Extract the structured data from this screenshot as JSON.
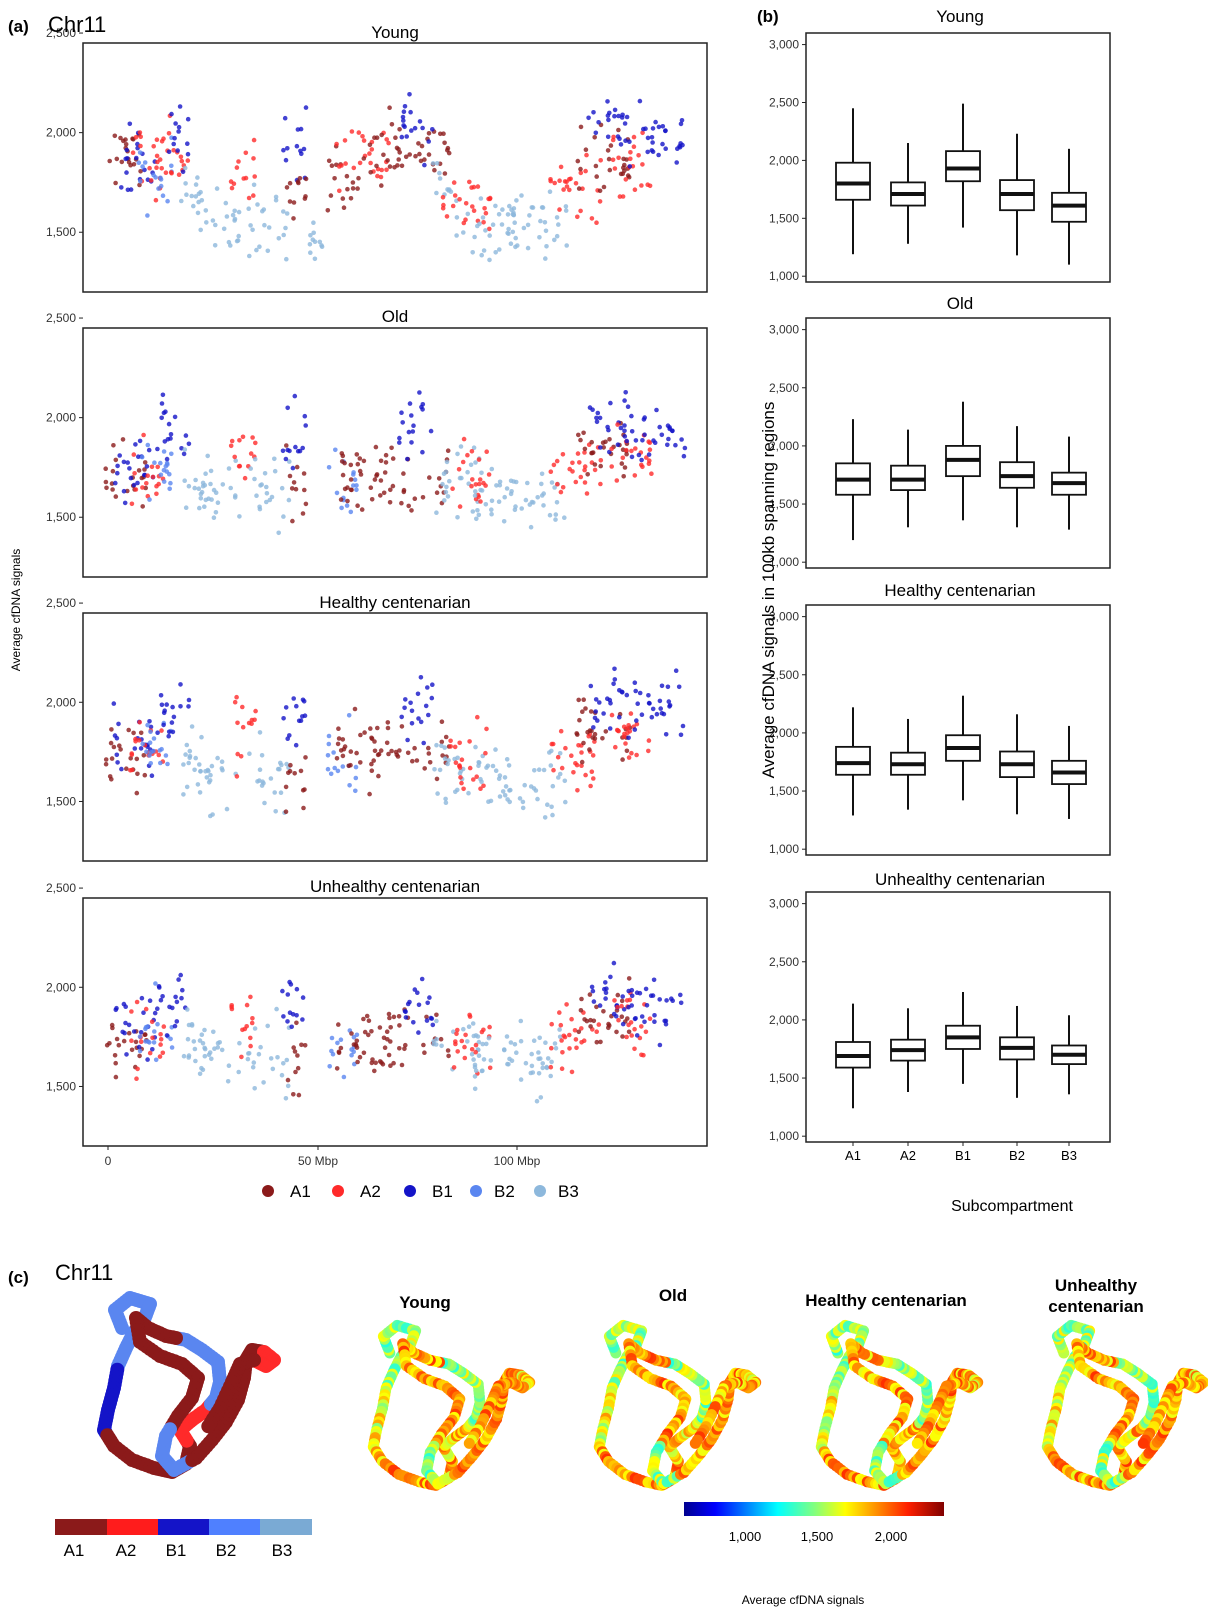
{
  "panel_labels": {
    "a": "(a)",
    "b": "(b)",
    "c": "(c)"
  },
  "chromosome": "Chr11",
  "groups": [
    "Young",
    "Old",
    "Healthy centenarian",
    "Unhealthy centenarian"
  ],
  "colors": {
    "A1": "#8b1a1a",
    "A2": "#ff2a2a",
    "B1": "#1414c8",
    "B2": "#5a86f0",
    "B3": "#8db8dc"
  },
  "legend": {
    "labels": [
      "A1",
      "A2",
      "B1",
      "B2",
      "B3"
    ]
  },
  "panel_a": {
    "ylabel": "Average cfDNA signals",
    "x_ticks": [
      "0",
      "50 Mbp",
      "100 Mbp"
    ],
    "y_ticks": [
      "1,500",
      "2,000",
      "2,500"
    ]
  },
  "panel_b": {
    "ylabel": "Average cfDNA signals in 100kb spanning regions",
    "xlabel": "Subcompartment",
    "y_ticks": [
      "1,000",
      "1,500",
      "2,000",
      "2,500",
      "3,000"
    ]
  },
  "panel_c": {
    "titles": [
      "Young",
      "Old",
      "Healthy centenarian",
      "Unhealthy",
      "centenarian"
    ],
    "compartment_bar_labels": [
      "A1",
      "A2",
      "B1",
      "B2",
      "B3"
    ],
    "colorbar_ticks": [
      "1,000",
      "1,500",
      "2,000"
    ],
    "colorbar_label": "Average cfDNA signals"
  },
  "chart_data": [
    {
      "type": "scatter",
      "title": "Young",
      "xlabel": "",
      "ylabel": "Average cfDNA signals",
      "xlim": [
        0,
        138
      ],
      "ylim": [
        1200,
        2450
      ],
      "segments": [
        {
          "x0": 0,
          "x1": 10,
          "comp": "A1",
          "base": 1880
        },
        {
          "x0": 3,
          "x1": 12,
          "comp": "B1",
          "base": 1850
        },
        {
          "x0": 6,
          "x1": 14,
          "comp": "A2",
          "base": 1850
        },
        {
          "x0": 8,
          "x1": 16,
          "comp": "B2",
          "base": 1780
        },
        {
          "x0": 12,
          "x1": 20,
          "comp": "A2",
          "base": 1900
        },
        {
          "x0": 15,
          "x1": 21,
          "comp": "B1",
          "base": 1980
        },
        {
          "x0": 18,
          "x1": 24,
          "comp": "B3",
          "base": 1700
        },
        {
          "x0": 22,
          "x1": 32,
          "comp": "B3",
          "base": 1520
        },
        {
          "x0": 30,
          "x1": 36,
          "comp": "A2",
          "base": 1820
        },
        {
          "x0": 34,
          "x1": 44,
          "comp": "B3",
          "base": 1560
        },
        {
          "x0": 42,
          "x1": 48,
          "comp": "B1",
          "base": 1950
        },
        {
          "x0": 43,
          "x1": 48,
          "comp": "A1",
          "base": 1700
        },
        {
          "x0": 47,
          "x1": 52,
          "comp": "B3",
          "base": 1450
        },
        {
          "x0": 53,
          "x1": 60,
          "comp": "A1",
          "base": 1750
        },
        {
          "x0": 55,
          "x1": 68,
          "comp": "A2",
          "base": 1900
        },
        {
          "x0": 60,
          "x1": 82,
          "comp": "A1",
          "base": 1900
        },
        {
          "x0": 70,
          "x1": 78,
          "comp": "B1",
          "base": 2050
        },
        {
          "x0": 78,
          "x1": 84,
          "comp": "B3",
          "base": 1700
        },
        {
          "x0": 80,
          "x1": 92,
          "comp": "A2",
          "base": 1650
        },
        {
          "x0": 85,
          "x1": 100,
          "comp": "B3",
          "base": 1530
        },
        {
          "x0": 96,
          "x1": 110,
          "comp": "B3",
          "base": 1550
        },
        {
          "x0": 106,
          "x1": 118,
          "comp": "A2",
          "base": 1720
        },
        {
          "x0": 112,
          "x1": 125,
          "comp": "A1",
          "base": 1850
        },
        {
          "x0": 115,
          "x1": 124,
          "comp": "B1",
          "base": 2050
        },
        {
          "x0": 120,
          "x1": 130,
          "comp": "A2",
          "base": 1800
        },
        {
          "x0": 124,
          "x1": 138,
          "comp": "B1",
          "base": 1950
        }
      ]
    },
    {
      "type": "scatter",
      "title": "Old",
      "xlabel": "",
      "ylabel": "Average cfDNA signals",
      "xlim": [
        0,
        138
      ],
      "ylim": [
        1200,
        2450
      ],
      "segments": [
        {
          "x0": 0,
          "x1": 10,
          "comp": "A1",
          "base": 1680
        },
        {
          "x0": 2,
          "x1": 12,
          "comp": "B1",
          "base": 1750
        },
        {
          "x0": 6,
          "x1": 14,
          "comp": "A2",
          "base": 1700
        },
        {
          "x0": 8,
          "x1": 16,
          "comp": "B2",
          "base": 1750
        },
        {
          "x0": 12,
          "x1": 20,
          "comp": "B1",
          "base": 1950
        },
        {
          "x0": 18,
          "x1": 24,
          "comp": "B3",
          "base": 1700
        },
        {
          "x0": 22,
          "x1": 32,
          "comp": "B3",
          "base": 1620
        },
        {
          "x0": 30,
          "x1": 36,
          "comp": "A2",
          "base": 1820
        },
        {
          "x0": 34,
          "x1": 44,
          "comp": "B3",
          "base": 1620
        },
        {
          "x0": 42,
          "x1": 48,
          "comp": "B1",
          "base": 1900
        },
        {
          "x0": 43,
          "x1": 48,
          "comp": "A1",
          "base": 1650
        },
        {
          "x0": 53,
          "x1": 60,
          "comp": "B2",
          "base": 1650
        },
        {
          "x0": 55,
          "x1": 82,
          "comp": "A1",
          "base": 1700
        },
        {
          "x0": 70,
          "x1": 78,
          "comp": "B1",
          "base": 1950
        },
        {
          "x0": 78,
          "x1": 90,
          "comp": "B3",
          "base": 1700
        },
        {
          "x0": 82,
          "x1": 92,
          "comp": "A2",
          "base": 1700
        },
        {
          "x0": 88,
          "x1": 110,
          "comp": "B3",
          "base": 1620
        },
        {
          "x0": 106,
          "x1": 118,
          "comp": "A2",
          "base": 1720
        },
        {
          "x0": 112,
          "x1": 125,
          "comp": "A1",
          "base": 1850
        },
        {
          "x0": 115,
          "x1": 124,
          "comp": "B1",
          "base": 2000
        },
        {
          "x0": 120,
          "x1": 130,
          "comp": "A2",
          "base": 1800
        },
        {
          "x0": 124,
          "x1": 138,
          "comp": "B1",
          "base": 1920
        }
      ]
    },
    {
      "type": "scatter",
      "title": "Healthy centenarian",
      "xlabel": "",
      "ylabel": "Average cfDNA signals",
      "xlim": [
        0,
        138
      ],
      "ylim": [
        1200,
        2450
      ],
      "segments": [
        {
          "x0": 0,
          "x1": 10,
          "comp": "A1",
          "base": 1720
        },
        {
          "x0": 2,
          "x1": 12,
          "comp": "B1",
          "base": 1800
        },
        {
          "x0": 6,
          "x1": 14,
          "comp": "A2",
          "base": 1750
        },
        {
          "x0": 8,
          "x1": 16,
          "comp": "B2",
          "base": 1780
        },
        {
          "x0": 12,
          "x1": 20,
          "comp": "B1",
          "base": 1980
        },
        {
          "x0": 18,
          "x1": 24,
          "comp": "B3",
          "base": 1700
        },
        {
          "x0": 22,
          "x1": 32,
          "comp": "B3",
          "base": 1600
        },
        {
          "x0": 30,
          "x1": 36,
          "comp": "A2",
          "base": 1850
        },
        {
          "x0": 34,
          "x1": 44,
          "comp": "B3",
          "base": 1600
        },
        {
          "x0": 42,
          "x1": 48,
          "comp": "B1",
          "base": 1950
        },
        {
          "x0": 43,
          "x1": 48,
          "comp": "A1",
          "base": 1650
        },
        {
          "x0": 53,
          "x1": 60,
          "comp": "B2",
          "base": 1700
        },
        {
          "x0": 55,
          "x1": 82,
          "comp": "A1",
          "base": 1750
        },
        {
          "x0": 70,
          "x1": 78,
          "comp": "B1",
          "base": 1950
        },
        {
          "x0": 78,
          "x1": 90,
          "comp": "B3",
          "base": 1700
        },
        {
          "x0": 82,
          "x1": 92,
          "comp": "A2",
          "base": 1720
        },
        {
          "x0": 88,
          "x1": 110,
          "comp": "B3",
          "base": 1620
        },
        {
          "x0": 106,
          "x1": 118,
          "comp": "A2",
          "base": 1720
        },
        {
          "x0": 112,
          "x1": 125,
          "comp": "A1",
          "base": 1850
        },
        {
          "x0": 115,
          "x1": 124,
          "comp": "B1",
          "base": 2000
        },
        {
          "x0": 120,
          "x1": 130,
          "comp": "A2",
          "base": 1820
        },
        {
          "x0": 124,
          "x1": 138,
          "comp": "B1",
          "base": 1950
        }
      ]
    },
    {
      "type": "scatter",
      "title": "Unhealthy centenarian",
      "xlabel": "",
      "ylabel": "Average cfDNA signals",
      "x_ticks": [
        "0",
        "50 Mbp",
        "100 Mbp"
      ],
      "xlim": [
        0,
        138
      ],
      "ylim": [
        1200,
        2450
      ],
      "segments": [
        {
          "x0": 0,
          "x1": 10,
          "comp": "A1",
          "base": 1700
        },
        {
          "x0": 2,
          "x1": 12,
          "comp": "B1",
          "base": 1780
        },
        {
          "x0": 6,
          "x1": 14,
          "comp": "A2",
          "base": 1760
        },
        {
          "x0": 8,
          "x1": 16,
          "comp": "B2",
          "base": 1780
        },
        {
          "x0": 12,
          "x1": 20,
          "comp": "B1",
          "base": 1920
        },
        {
          "x0": 18,
          "x1": 24,
          "comp": "B3",
          "base": 1700
        },
        {
          "x0": 22,
          "x1": 32,
          "comp": "B3",
          "base": 1640
        },
        {
          "x0": 30,
          "x1": 36,
          "comp": "A2",
          "base": 1820
        },
        {
          "x0": 34,
          "x1": 44,
          "comp": "B3",
          "base": 1650
        },
        {
          "x0": 42,
          "x1": 48,
          "comp": "B1",
          "base": 1900
        },
        {
          "x0": 43,
          "x1": 48,
          "comp": "A1",
          "base": 1650
        },
        {
          "x0": 53,
          "x1": 60,
          "comp": "B2",
          "base": 1720
        },
        {
          "x0": 55,
          "x1": 82,
          "comp": "A1",
          "base": 1720
        },
        {
          "x0": 70,
          "x1": 78,
          "comp": "B1",
          "base": 1900
        },
        {
          "x0": 78,
          "x1": 90,
          "comp": "B3",
          "base": 1720
        },
        {
          "x0": 82,
          "x1": 92,
          "comp": "A2",
          "base": 1720
        },
        {
          "x0": 88,
          "x1": 110,
          "comp": "B3",
          "base": 1640
        },
        {
          "x0": 106,
          "x1": 118,
          "comp": "A2",
          "base": 1760
        },
        {
          "x0": 112,
          "x1": 125,
          "comp": "A1",
          "base": 1850
        },
        {
          "x0": 115,
          "x1": 124,
          "comp": "B1",
          "base": 1950
        },
        {
          "x0": 120,
          "x1": 130,
          "comp": "A2",
          "base": 1820
        },
        {
          "x0": 124,
          "x1": 138,
          "comp": "B1",
          "base": 1900
        }
      ]
    },
    {
      "type": "box",
      "title": "Young",
      "categories": [
        "A1",
        "A2",
        "B1",
        "B2",
        "B3"
      ],
      "ylim": [
        950,
        3100
      ],
      "boxes": [
        {
          "min": 1190,
          "q1": 1660,
          "median": 1800,
          "q3": 1980,
          "max": 2450
        },
        {
          "min": 1280,
          "q1": 1610,
          "median": 1710,
          "q3": 1810,
          "max": 2150
        },
        {
          "min": 1420,
          "q1": 1820,
          "median": 1930,
          "q3": 2080,
          "max": 2490
        },
        {
          "min": 1180,
          "q1": 1570,
          "median": 1710,
          "q3": 1830,
          "max": 2230
        },
        {
          "min": 1100,
          "q1": 1470,
          "median": 1610,
          "q3": 1720,
          "max": 2100
        }
      ]
    },
    {
      "type": "box",
      "title": "Old",
      "categories": [
        "A1",
        "A2",
        "B1",
        "B2",
        "B3"
      ],
      "ylim": [
        950,
        3100
      ],
      "boxes": [
        {
          "min": 1190,
          "q1": 1580,
          "median": 1710,
          "q3": 1850,
          "max": 2230
        },
        {
          "min": 1300,
          "q1": 1620,
          "median": 1710,
          "q3": 1830,
          "max": 2140
        },
        {
          "min": 1360,
          "q1": 1740,
          "median": 1880,
          "q3": 2000,
          "max": 2380
        },
        {
          "min": 1300,
          "q1": 1640,
          "median": 1740,
          "q3": 1860,
          "max": 2170
        },
        {
          "min": 1280,
          "q1": 1580,
          "median": 1680,
          "q3": 1770,
          "max": 2080
        }
      ]
    },
    {
      "type": "box",
      "title": "Healthy centenarian",
      "categories": [
        "A1",
        "A2",
        "B1",
        "B2",
        "B3"
      ],
      "ylim": [
        950,
        3100
      ],
      "boxes": [
        {
          "min": 1290,
          "q1": 1640,
          "median": 1740,
          "q3": 1880,
          "max": 2220
        },
        {
          "min": 1340,
          "q1": 1640,
          "median": 1730,
          "q3": 1830,
          "max": 2120
        },
        {
          "min": 1420,
          "q1": 1760,
          "median": 1870,
          "q3": 1980,
          "max": 2320
        },
        {
          "min": 1300,
          "q1": 1620,
          "median": 1730,
          "q3": 1840,
          "max": 2160
        },
        {
          "min": 1260,
          "q1": 1560,
          "median": 1660,
          "q3": 1760,
          "max": 2060
        }
      ]
    },
    {
      "type": "box",
      "title": "Unhealthy centenarian",
      "categories": [
        "A1",
        "A2",
        "B1",
        "B2",
        "B3"
      ],
      "xlabel": "Subcompartment",
      "ylim": [
        950,
        3100
      ],
      "boxes": [
        {
          "min": 1240,
          "q1": 1590,
          "median": 1690,
          "q3": 1810,
          "max": 2140
        },
        {
          "min": 1380,
          "q1": 1650,
          "median": 1740,
          "q3": 1830,
          "max": 2100
        },
        {
          "min": 1450,
          "q1": 1750,
          "median": 1850,
          "q3": 1950,
          "max": 2240
        },
        {
          "min": 1330,
          "q1": 1660,
          "median": 1760,
          "q3": 1850,
          "max": 2120
        },
        {
          "min": 1360,
          "q1": 1620,
          "median": 1700,
          "q3": 1780,
          "max": 2040
        }
      ]
    }
  ]
}
